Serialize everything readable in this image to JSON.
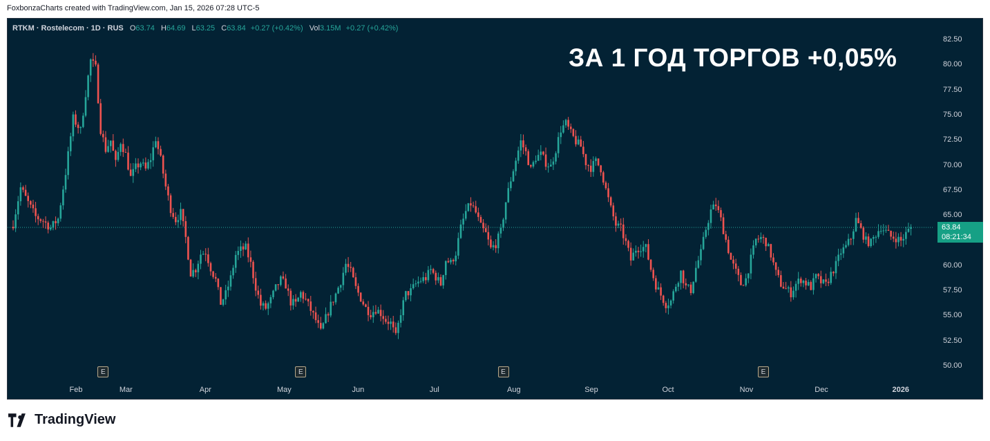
{
  "header": {
    "attribution": "FoxbonzaCharts created with TradingView.com, Jan 15, 2026 07:28 UTC-5"
  },
  "legend": {
    "symbol": "RTKM · Rostelecom · 1D · RUS",
    "o_label": "O",
    "o_value": "63.74",
    "h_label": "H",
    "h_value": "64.69",
    "l_label": "L",
    "l_value": "63.25",
    "c_label": "C",
    "c_value": "63.84",
    "change": "+0.27 (+0.42%)",
    "vol_label": "Vol",
    "vol_value": "3.15M",
    "vol_change": "+0.27 (+0.42%)"
  },
  "headline": "ЗА 1 ГОД ТОРГОВ +0,05%",
  "last_price": {
    "price": "63.84",
    "countdown": "08:21:34"
  },
  "earnings_badge": "E",
  "brand": {
    "name": "TradingView"
  },
  "colors": {
    "up": "#26a69a",
    "down": "#ef5350",
    "background": "#032234",
    "last_price_tag": "#16a085"
  },
  "chart_data": {
    "type": "candlestick",
    "title": "",
    "ylim": [
      49,
      84
    ],
    "y_ticks": [
      "82.50",
      "80.00",
      "77.50",
      "75.00",
      "72.50",
      "70.00",
      "67.50",
      "65.00",
      "62.50",
      "60.00",
      "57.50",
      "55.00",
      "52.50",
      "50.00"
    ],
    "x_ticks": [
      "Feb",
      "Mar",
      "Apr",
      "May",
      "Jun",
      "Jul",
      "Aug",
      "Sep",
      "Oct",
      "Nov",
      "Dec",
      "2026"
    ],
    "x_tick_days": [
      25,
      45,
      77,
      108,
      138,
      169,
      200,
      231,
      262,
      293,
      323,
      354
    ],
    "earnings_days": [
      36,
      115,
      196,
      300
    ],
    "last_price": 63.84,
    "close_series": [
      {
        "day": 0,
        "close": 64.2
      },
      {
        "day": 3,
        "close": 67.8
      },
      {
        "day": 6,
        "close": 66.3
      },
      {
        "day": 9,
        "close": 64.9
      },
      {
        "day": 12,
        "close": 64.5
      },
      {
        "day": 15,
        "close": 63.8
      },
      {
        "day": 18,
        "close": 64.7
      },
      {
        "day": 21,
        "close": 69.3
      },
      {
        "day": 24,
        "close": 74.7
      },
      {
        "day": 27,
        "close": 73.5
      },
      {
        "day": 29,
        "close": 77.2
      },
      {
        "day": 31,
        "close": 80.5
      },
      {
        "day": 33,
        "close": 79.7
      },
      {
        "day": 35,
        "close": 73.6
      },
      {
        "day": 37,
        "close": 71.6
      },
      {
        "day": 39,
        "close": 72.5
      },
      {
        "day": 41,
        "close": 70.2
      },
      {
        "day": 43,
        "close": 72.4
      },
      {
        "day": 45,
        "close": 71.1
      },
      {
        "day": 47,
        "close": 68.8
      },
      {
        "day": 49,
        "close": 69.8
      },
      {
        "day": 51,
        "close": 70.3
      },
      {
        "day": 53,
        "close": 69.6
      },
      {
        "day": 55,
        "close": 70.7
      },
      {
        "day": 57,
        "close": 72.7
      },
      {
        "day": 59,
        "close": 70.6
      },
      {
        "day": 61,
        "close": 67.9
      },
      {
        "day": 63,
        "close": 65.7
      },
      {
        "day": 65,
        "close": 64.6
      },
      {
        "day": 67,
        "close": 65.3
      },
      {
        "day": 69,
        "close": 62.8
      },
      {
        "day": 71,
        "close": 59.3
      },
      {
        "day": 73,
        "close": 59.7
      },
      {
        "day": 75,
        "close": 61.2
      },
      {
        "day": 77,
        "close": 61.4
      },
      {
        "day": 79,
        "close": 59.8
      },
      {
        "day": 81,
        "close": 58.6
      },
      {
        "day": 83,
        "close": 56.3
      },
      {
        "day": 85,
        "close": 57.2
      },
      {
        "day": 87,
        "close": 58.8
      },
      {
        "day": 89,
        "close": 61.1
      },
      {
        "day": 91,
        "close": 61.6
      },
      {
        "day": 93,
        "close": 61.8
      },
      {
        "day": 95,
        "close": 60.2
      },
      {
        "day": 97,
        "close": 57.9
      },
      {
        "day": 99,
        "close": 56.1
      },
      {
        "day": 101,
        "close": 55.8
      },
      {
        "day": 103,
        "close": 56.6
      },
      {
        "day": 105,
        "close": 57.8
      },
      {
        "day": 107,
        "close": 58.6
      },
      {
        "day": 109,
        "close": 58.1
      },
      {
        "day": 111,
        "close": 56.4
      },
      {
        "day": 113,
        "close": 56.2
      },
      {
        "day": 115,
        "close": 57.3
      },
      {
        "day": 117,
        "close": 56.6
      },
      {
        "day": 119,
        "close": 55.6
      },
      {
        "day": 121,
        "close": 54.6
      },
      {
        "day": 123,
        "close": 53.4
      },
      {
        "day": 125,
        "close": 54.8
      },
      {
        "day": 127,
        "close": 56.1
      },
      {
        "day": 129,
        "close": 57.2
      },
      {
        "day": 131,
        "close": 58.5
      },
      {
        "day": 133,
        "close": 60.2
      },
      {
        "day": 135,
        "close": 59.4
      },
      {
        "day": 137,
        "close": 57.8
      },
      {
        "day": 139,
        "close": 56.8
      },
      {
        "day": 141,
        "close": 55.8
      },
      {
        "day": 143,
        "close": 55.3
      },
      {
        "day": 145,
        "close": 55.7
      },
      {
        "day": 147,
        "close": 55.3
      },
      {
        "day": 149,
        "close": 54.6
      },
      {
        "day": 151,
        "close": 54.3
      },
      {
        "day": 153,
        "close": 52.9
      },
      {
        "day": 155,
        "close": 55.4
      },
      {
        "day": 157,
        "close": 57.2
      },
      {
        "day": 159,
        "close": 57.5
      },
      {
        "day": 161,
        "close": 58.2
      },
      {
        "day": 163,
        "close": 58.6
      },
      {
        "day": 165,
        "close": 58.8
      },
      {
        "day": 167,
        "close": 59.6
      },
      {
        "day": 169,
        "close": 58.9
      },
      {
        "day": 171,
        "close": 58.2
      },
      {
        "day": 173,
        "close": 60.6
      },
      {
        "day": 175,
        "close": 60.3
      },
      {
        "day": 177,
        "close": 61.3
      },
      {
        "day": 179,
        "close": 63.8
      },
      {
        "day": 181,
        "close": 65.4
      },
      {
        "day": 183,
        "close": 66.2
      },
      {
        "day": 185,
        "close": 65.3
      },
      {
        "day": 187,
        "close": 63.9
      },
      {
        "day": 189,
        "close": 63.2
      },
      {
        "day": 191,
        "close": 61.7
      },
      {
        "day": 193,
        "close": 62.2
      },
      {
        "day": 195,
        "close": 63.4
      },
      {
        "day": 197,
        "close": 66.4
      },
      {
        "day": 199,
        "close": 68.6
      },
      {
        "day": 201,
        "close": 70.6
      },
      {
        "day": 203,
        "close": 72.4
      },
      {
        "day": 205,
        "close": 71.3
      },
      {
        "day": 207,
        "close": 69.6
      },
      {
        "day": 209,
        "close": 70.8
      },
      {
        "day": 211,
        "close": 71.1
      },
      {
        "day": 213,
        "close": 70.3
      },
      {
        "day": 215,
        "close": 69.9
      },
      {
        "day": 217,
        "close": 71.6
      },
      {
        "day": 219,
        "close": 73.6
      },
      {
        "day": 221,
        "close": 74.2
      },
      {
        "day": 223,
        "close": 73.2
      },
      {
        "day": 225,
        "close": 72.4
      },
      {
        "day": 227,
        "close": 71.9
      },
      {
        "day": 229,
        "close": 70.3
      },
      {
        "day": 231,
        "close": 69.8
      },
      {
        "day": 233,
        "close": 70.4
      },
      {
        "day": 235,
        "close": 69.7
      },
      {
        "day": 237,
        "close": 67.6
      },
      {
        "day": 239,
        "close": 65.7
      },
      {
        "day": 241,
        "close": 64.1
      },
      {
        "day": 243,
        "close": 63.7
      },
      {
        "day": 245,
        "close": 62.3
      },
      {
        "day": 247,
        "close": 60.6
      },
      {
        "day": 249,
        "close": 61.7
      },
      {
        "day": 251,
        "close": 61.9
      },
      {
        "day": 253,
        "close": 61.8
      },
      {
        "day": 255,
        "close": 59.7
      },
      {
        "day": 257,
        "close": 58.1
      },
      {
        "day": 259,
        "close": 57.1
      },
      {
        "day": 261,
        "close": 56.2
      },
      {
        "day": 263,
        "close": 56.5
      },
      {
        "day": 265,
        "close": 58.1
      },
      {
        "day": 267,
        "close": 59.4
      },
      {
        "day": 269,
        "close": 57.9
      },
      {
        "day": 271,
        "close": 57.6
      },
      {
        "day": 273,
        "close": 59.8
      },
      {
        "day": 275,
        "close": 61.3
      },
      {
        "day": 277,
        "close": 63.7
      },
      {
        "day": 279,
        "close": 65.5
      },
      {
        "day": 281,
        "close": 66.1
      },
      {
        "day": 283,
        "close": 64.6
      },
      {
        "day": 285,
        "close": 62.6
      },
      {
        "day": 287,
        "close": 60.6
      },
      {
        "day": 289,
        "close": 59.4
      },
      {
        "day": 291,
        "close": 58.2
      },
      {
        "day": 293,
        "close": 58.7
      },
      {
        "day": 295,
        "close": 60.7
      },
      {
        "day": 297,
        "close": 62.6
      },
      {
        "day": 299,
        "close": 62.8
      },
      {
        "day": 301,
        "close": 62.4
      },
      {
        "day": 303,
        "close": 61.1
      },
      {
        "day": 305,
        "close": 59.3
      },
      {
        "day": 307,
        "close": 58.2
      },
      {
        "day": 309,
        "close": 57.7
      },
      {
        "day": 311,
        "close": 57.3
      },
      {
        "day": 313,
        "close": 58.2
      },
      {
        "day": 315,
        "close": 58.7
      },
      {
        "day": 317,
        "close": 58.3
      },
      {
        "day": 319,
        "close": 57.9
      },
      {
        "day": 321,
        "close": 58.9
      },
      {
        "day": 323,
        "close": 58.4
      },
      {
        "day": 325,
        "close": 58.1
      },
      {
        "day": 327,
        "close": 59.2
      },
      {
        "day": 329,
        "close": 60.1
      },
      {
        "day": 331,
        "close": 61.4
      },
      {
        "day": 333,
        "close": 61.9
      },
      {
        "day": 335,
        "close": 62.8
      },
      {
        "day": 337,
        "close": 64.6
      },
      {
        "day": 339,
        "close": 63.6
      },
      {
        "day": 341,
        "close": 62.5
      },
      {
        "day": 343,
        "close": 62.3
      },
      {
        "day": 345,
        "close": 63.2
      },
      {
        "day": 347,
        "close": 63.9
      },
      {
        "day": 349,
        "close": 63.4
      },
      {
        "day": 351,
        "close": 62.9
      },
      {
        "day": 353,
        "close": 62.8
      },
      {
        "day": 355,
        "close": 62.5
      },
      {
        "day": 357,
        "close": 63.2
      },
      {
        "day": 359,
        "close": 63.84
      }
    ]
  }
}
